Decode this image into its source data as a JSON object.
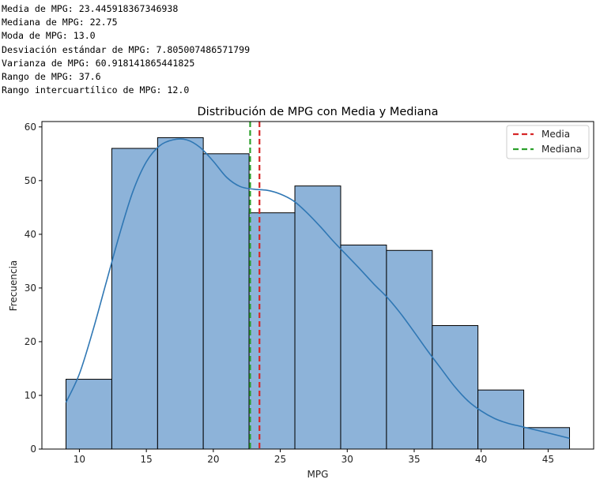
{
  "stats_lines": [
    "Media de MPG: 23.445918367346938",
    "Mediana de MPG: 22.75",
    "Moda de MPG: 13.0",
    "Desviación estándar de MPG: 7.805007486571799",
    "Varianza de MPG: 60.918141865441825",
    "Rango de MPG: 37.6",
    "Rango intercuartílico de MPG: 12.0"
  ],
  "chart_data": {
    "type": "bar",
    "title": "Distribución de MPG con Media y Mediana",
    "xlabel": "MPG",
    "ylabel": "Frecuencia",
    "xlim": [
      7.2,
      48.4
    ],
    "ylim": [
      0,
      61
    ],
    "x_ticks": [
      10,
      15,
      20,
      25,
      30,
      35,
      40,
      45
    ],
    "y_ticks": [
      0,
      10,
      20,
      30,
      40,
      50,
      60
    ],
    "bin_edges": [
      9.0,
      12.42,
      15.84,
      19.25,
      22.67,
      26.09,
      29.51,
      32.93,
      36.35,
      39.76,
      43.18,
      46.6
    ],
    "values": [
      13,
      56,
      58,
      55,
      44,
      49,
      38,
      37,
      23,
      11,
      4
    ],
    "bar_color": "#8db3d9",
    "kde": {
      "color": "#2f77b4",
      "x": [
        9.0,
        10,
        11,
        12,
        13,
        14,
        15,
        16,
        17,
        18,
        19,
        20,
        21,
        22,
        23,
        24,
        25,
        26,
        27,
        28,
        29,
        30,
        31,
        32,
        33,
        34,
        35,
        36,
        37,
        38,
        39,
        40,
        41,
        42,
        43,
        44,
        45,
        46.6
      ],
      "y": [
        8.7,
        14,
        22,
        31,
        40,
        48,
        53.5,
        56.5,
        57.6,
        57.6,
        56.2,
        53.6,
        50.6,
        48.9,
        48.4,
        48.2,
        47.5,
        46.2,
        44.0,
        41.4,
        38.6,
        36.0,
        33.4,
        30.7,
        28.2,
        25.2,
        21.8,
        18.3,
        15.0,
        11.7,
        9.0,
        7.1,
        5.7,
        4.8,
        4.2,
        3.6,
        3.0,
        2.0
      ]
    },
    "lines": [
      {
        "name": "Media",
        "value": 23.445918367346938,
        "color": "#d62728"
      },
      {
        "name": "Mediana",
        "value": 22.75,
        "color": "#2ca02c"
      }
    ],
    "legend_placement": "top-right"
  }
}
